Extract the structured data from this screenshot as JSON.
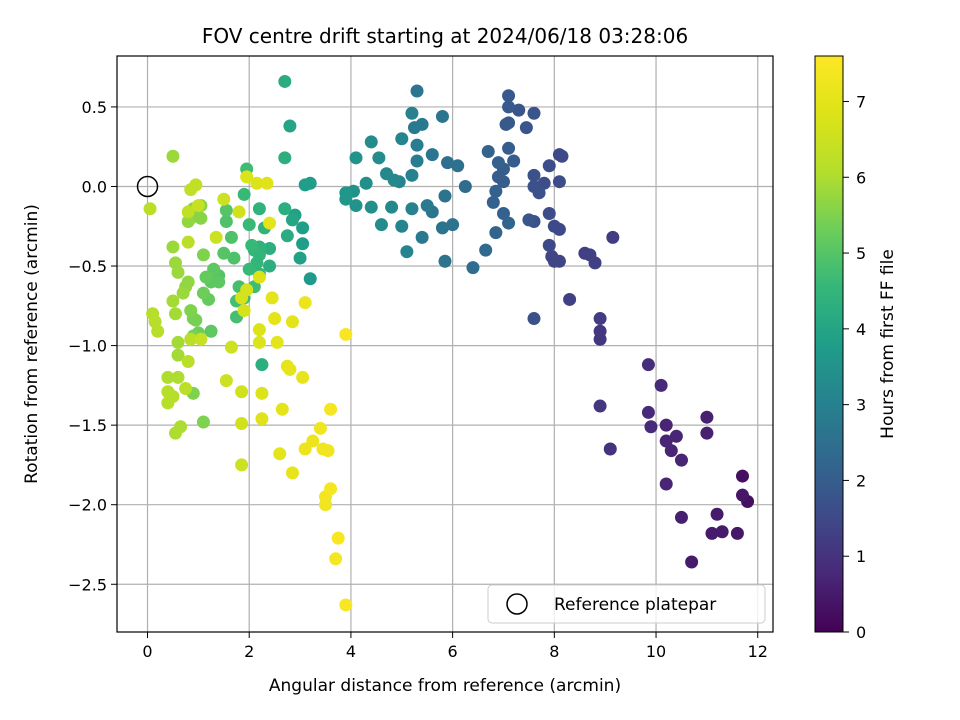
{
  "chart_data": {
    "type": "scatter",
    "title": "FOV centre drift starting at 2024/06/18 03:28:06",
    "xlabel": "Angular distance from reference (arcmin)",
    "ylabel": "Rotation from reference (arcmin)",
    "xlim": [
      -0.6,
      12.3
    ],
    "ylim": [
      -2.8,
      0.82
    ],
    "xticks": [
      0,
      2,
      4,
      6,
      8,
      10,
      12
    ],
    "yticks": [
      0.5,
      0.0,
      -0.5,
      -1.0,
      -1.5,
      -2.0,
      -2.5
    ],
    "xtick_labels": [
      "0",
      "2",
      "4",
      "6",
      "8",
      "10",
      "12"
    ],
    "ytick_labels": [
      "0.5",
      "0.0",
      "−0.5",
      "−1.0",
      "−1.5",
      "−2.0",
      "−2.5"
    ],
    "grid": true,
    "colormap": "viridis",
    "colorbar": {
      "label": "Hours from first FF file",
      "range": [
        0,
        7.6
      ],
      "ticks": [
        0,
        1,
        2,
        3,
        4,
        5,
        6,
        7
      ],
      "tick_labels": [
        "0",
        "1",
        "2",
        "3",
        "4",
        "5",
        "6",
        "7"
      ]
    },
    "reference": {
      "x": 0,
      "y": 0,
      "label": "Reference platepar"
    },
    "legend_position": "lower-right",
    "points": [
      [
        11.7,
        -1.82,
        0.3
      ],
      [
        11.8,
        -1.98,
        0.3
      ],
      [
        11.7,
        -1.94,
        0.4
      ],
      [
        11.6,
        -2.18,
        0.4
      ],
      [
        11.3,
        -2.17,
        0.5
      ],
      [
        11.2,
        -2.06,
        0.5
      ],
      [
        11.1,
        -2.18,
        0.5
      ],
      [
        11.0,
        -1.45,
        0.6
      ],
      [
        11.0,
        -1.55,
        0.6
      ],
      [
        10.7,
        -2.36,
        0.5
      ],
      [
        10.5,
        -2.08,
        0.6
      ],
      [
        10.5,
        -1.72,
        0.7
      ],
      [
        10.4,
        -1.57,
        0.7
      ],
      [
        10.3,
        -1.66,
        0.7
      ],
      [
        10.2,
        -1.6,
        0.7
      ],
      [
        10.2,
        -1.5,
        0.7
      ],
      [
        10.2,
        -1.87,
        0.7
      ],
      [
        10.1,
        -1.25,
        0.8
      ],
      [
        9.9,
        -1.51,
        0.8
      ],
      [
        9.85,
        -1.42,
        0.8
      ],
      [
        9.85,
        -1.12,
        0.9
      ],
      [
        9.1,
        -1.65,
        1.0
      ],
      [
        8.9,
        -1.38,
        1.1
      ],
      [
        8.9,
        -0.96,
        1.1
      ],
      [
        8.9,
        -0.91,
        1.1
      ],
      [
        8.9,
        -0.83,
        1.2
      ],
      [
        9.15,
        -0.32,
        1.2
      ],
      [
        8.8,
        -0.48,
        1.3
      ],
      [
        8.7,
        -0.43,
        1.3
      ],
      [
        8.6,
        -0.42,
        1.3
      ],
      [
        8.3,
        -0.71,
        1.3
      ],
      [
        8.1,
        -0.47,
        1.4
      ],
      [
        8.0,
        -0.47,
        1.4
      ],
      [
        7.95,
        -0.44,
        1.4
      ],
      [
        7.9,
        -0.37,
        1.5
      ],
      [
        8.1,
        -0.27,
        1.5
      ],
      [
        8.0,
        -0.25,
        1.5
      ],
      [
        7.9,
        -0.17,
        1.6
      ],
      [
        7.6,
        -0.83,
        1.7
      ],
      [
        8.1,
        0.03,
        1.6
      ],
      [
        8.15,
        0.19,
        1.5
      ],
      [
        8.1,
        0.2,
        1.5
      ],
      [
        7.9,
        0.13,
        1.6
      ],
      [
        7.8,
        0.02,
        1.6
      ],
      [
        7.7,
        -0.04,
        1.7
      ],
      [
        7.6,
        0.0,
        1.7
      ],
      [
        7.6,
        -0.22,
        1.7
      ],
      [
        7.5,
        -0.21,
        1.8
      ],
      [
        7.6,
        0.07,
        1.7
      ],
      [
        7.6,
        0.46,
        1.8
      ],
      [
        7.45,
        0.37,
        1.8
      ],
      [
        7.3,
        0.48,
        1.8
      ],
      [
        7.1,
        0.57,
        1.9
      ],
      [
        7.1,
        0.5,
        1.9
      ],
      [
        7.1,
        0.4,
        1.9
      ],
      [
        7.05,
        0.39,
        1.9
      ],
      [
        7.2,
        0.16,
        2.0
      ],
      [
        7.1,
        0.24,
        2.0
      ],
      [
        7.0,
        0.11,
        2.0
      ],
      [
        7.0,
        0.03,
        2.0
      ],
      [
        6.9,
        0.06,
        2.0
      ],
      [
        6.85,
        -0.03,
        2.1
      ],
      [
        6.8,
        -0.1,
        2.1
      ],
      [
        6.9,
        0.15,
        2.1
      ],
      [
        7.0,
        -0.17,
        2.1
      ],
      [
        7.1,
        -0.23,
        2.2
      ],
      [
        6.85,
        -0.29,
        2.2
      ],
      [
        6.7,
        0.22,
        2.2
      ],
      [
        6.65,
        -0.4,
        2.3
      ],
      [
        6.4,
        -0.51,
        2.4
      ],
      [
        6.25,
        0.0,
        2.4
      ],
      [
        6.1,
        0.13,
        2.5
      ],
      [
        5.9,
        0.15,
        2.5
      ],
      [
        6.0,
        -0.24,
        2.6
      ],
      [
        5.8,
        -0.26,
        2.6
      ],
      [
        5.85,
        -0.06,
        2.6
      ],
      [
        5.85,
        -0.47,
        2.6
      ],
      [
        5.8,
        0.44,
        2.7
      ],
      [
        5.6,
        -0.16,
        2.7
      ],
      [
        5.6,
        0.2,
        2.7
      ],
      [
        5.5,
        -0.12,
        2.8
      ],
      [
        5.4,
        -0.32,
        2.8
      ],
      [
        5.4,
        0.39,
        2.8
      ],
      [
        5.3,
        0.6,
        2.7
      ],
      [
        5.25,
        0.37,
        2.8
      ],
      [
        5.3,
        0.26,
        2.9
      ],
      [
        5.3,
        0.16,
        2.9
      ],
      [
        5.2,
        0.46,
        3.0
      ],
      [
        5.2,
        0.07,
        3.0
      ],
      [
        5.2,
        -0.14,
        3.0
      ],
      [
        5.1,
        -0.41,
        3.1
      ],
      [
        5.0,
        -0.25,
        3.1
      ],
      [
        5.0,
        0.3,
        3.1
      ],
      [
        4.95,
        0.03,
        3.1
      ],
      [
        4.85,
        0.04,
        3.2
      ],
      [
        4.8,
        -0.13,
        3.2
      ],
      [
        4.7,
        0.08,
        3.2
      ],
      [
        4.6,
        -0.24,
        3.3
      ],
      [
        4.55,
        0.18,
        3.3
      ],
      [
        4.4,
        0.28,
        3.3
      ],
      [
        4.4,
        -0.13,
        3.4
      ],
      [
        4.3,
        0.02,
        3.4
      ],
      [
        4.1,
        0.18,
        3.5
      ],
      [
        4.05,
        -0.03,
        3.5
      ],
      [
        4.1,
        -0.12,
        3.5
      ],
      [
        3.9,
        -0.04,
        3.6
      ],
      [
        3.9,
        -0.08,
        3.6
      ],
      [
        3.2,
        0.02,
        3.8
      ],
      [
        3.2,
        -0.58,
        3.7
      ],
      [
        3.1,
        0.01,
        3.8
      ],
      [
        3.05,
        -0.26,
        3.8
      ],
      [
        3.05,
        -0.36,
        3.8
      ],
      [
        3.0,
        -0.45,
        3.9
      ],
      [
        2.9,
        -0.18,
        3.9
      ],
      [
        2.85,
        -0.21,
        4.0
      ],
      [
        2.8,
        0.38,
        4.0
      ],
      [
        2.7,
        0.66,
        4.2
      ],
      [
        2.7,
        0.18,
        4.3
      ],
      [
        2.75,
        -0.31,
        4.2
      ],
      [
        2.7,
        -0.14,
        4.3
      ],
      [
        2.4,
        -0.39,
        4.3
      ],
      [
        2.4,
        -0.5,
        4.3
      ],
      [
        2.2,
        -0.14,
        4.4
      ],
      [
        2.3,
        -0.26,
        4.4
      ],
      [
        2.2,
        -0.38,
        4.4
      ],
      [
        2.2,
        -0.43,
        4.5
      ],
      [
        2.2,
        -0.55,
        4.5
      ],
      [
        2.15,
        -0.48,
        4.5
      ],
      [
        2.1,
        -0.4,
        4.5
      ],
      [
        2.05,
        -0.37,
        4.6
      ],
      [
        2.0,
        -0.24,
        4.6
      ],
      [
        2.0,
        -0.52,
        4.6
      ],
      [
        1.9,
        -0.05,
        4.6
      ],
      [
        1.95,
        0.11,
        4.7
      ],
      [
        2.25,
        -1.12,
        4.3
      ],
      [
        2.1,
        -0.63,
        4.7
      ],
      [
        1.9,
        -0.7,
        4.7
      ],
      [
        1.8,
        -0.63,
        4.8
      ],
      [
        1.75,
        -0.72,
        4.8
      ],
      [
        1.75,
        -0.82,
        4.8
      ],
      [
        1.7,
        -0.45,
        4.9
      ],
      [
        1.65,
        -0.32,
        4.9
      ],
      [
        1.55,
        -0.22,
        4.9
      ],
      [
        1.55,
        -0.15,
        5.0
      ],
      [
        1.5,
        -0.42,
        5.0
      ],
      [
        1.4,
        -0.56,
        5.0
      ],
      [
        1.4,
        -0.6,
        5.1
      ],
      [
        1.3,
        -0.52,
        5.1
      ],
      [
        1.25,
        -0.6,
        5.1
      ],
      [
        1.25,
        -0.91,
        5.1
      ],
      [
        1.2,
        -0.71,
        5.2
      ],
      [
        1.15,
        -0.57,
        5.2
      ],
      [
        1.1,
        -0.67,
        5.3
      ],
      [
        1.0,
        -0.92,
        5.3
      ],
      [
        0.95,
        -0.84,
        5.4
      ],
      [
        0.9,
        -0.83,
        5.4
      ],
      [
        0.9,
        -0.94,
        5.4
      ],
      [
        0.85,
        -0.78,
        5.5
      ],
      [
        0.9,
        -1.3,
        5.5
      ],
      [
        1.1,
        -1.48,
        5.5
      ],
      [
        1.1,
        -0.43,
        5.5
      ],
      [
        1.05,
        -0.2,
        5.6
      ],
      [
        1.05,
        -0.12,
        5.6
      ],
      [
        0.9,
        -0.14,
        5.6
      ],
      [
        0.85,
        -0.2,
        5.6
      ],
      [
        0.8,
        -0.22,
        5.7
      ],
      [
        0.8,
        -0.6,
        5.7
      ],
      [
        0.75,
        -0.63,
        5.7
      ],
      [
        0.7,
        -0.67,
        5.8
      ],
      [
        0.6,
        -0.54,
        5.8
      ],
      [
        0.55,
        -0.48,
        5.8
      ],
      [
        0.5,
        -0.38,
        5.8
      ],
      [
        0.5,
        0.19,
        5.8
      ],
      [
        0.5,
        -0.72,
        5.9
      ],
      [
        0.55,
        -0.8,
        5.9
      ],
      [
        0.6,
        -0.98,
        5.9
      ],
      [
        0.6,
        -1.06,
        5.9
      ],
      [
        0.55,
        -1.55,
        6.0
      ],
      [
        0.65,
        -1.51,
        6.0
      ],
      [
        0.6,
        -1.2,
        6.0
      ],
      [
        0.4,
        -1.2,
        6.0
      ],
      [
        0.4,
        -1.36,
        6.1
      ],
      [
        0.5,
        -1.32,
        6.1
      ],
      [
        0.4,
        -1.29,
        6.1
      ],
      [
        0.2,
        -0.91,
        6.1
      ],
      [
        0.15,
        -0.85,
        6.1
      ],
      [
        0.1,
        -0.8,
        6.1
      ],
      [
        0.05,
        -0.14,
        6.2
      ],
      [
        0.75,
        -1.27,
        6.2
      ],
      [
        0.8,
        -1.1,
        6.2
      ],
      [
        0.85,
        -0.96,
        6.2
      ],
      [
        0.8,
        -0.35,
        6.2
      ],
      [
        0.8,
        -0.16,
        6.3
      ],
      [
        0.85,
        -0.02,
        6.3
      ],
      [
        0.95,
        0.01,
        6.3
      ],
      [
        1.0,
        -0.12,
        6.4
      ],
      [
        1.05,
        -0.96,
        6.4
      ],
      [
        1.35,
        -0.32,
        6.5
      ],
      [
        1.5,
        -0.08,
        6.5
      ],
      [
        1.55,
        -1.22,
        6.5
      ],
      [
        1.65,
        -1.01,
        6.5
      ],
      [
        1.85,
        -1.75,
        6.5
      ],
      [
        1.85,
        -1.49,
        6.6
      ],
      [
        1.85,
        -1.29,
        6.6
      ],
      [
        1.8,
        -0.16,
        6.6
      ],
      [
        1.85,
        -0.7,
        6.7
      ],
      [
        1.9,
        -0.78,
        6.7
      ],
      [
        1.95,
        -0.65,
        6.7
      ],
      [
        1.95,
        0.06,
        6.8
      ],
      [
        2.15,
        0.02,
        6.8
      ],
      [
        2.2,
        -0.57,
        6.8
      ],
      [
        2.2,
        -0.9,
        6.8
      ],
      [
        2.2,
        -0.98,
        6.8
      ],
      [
        2.25,
        -1.3,
        6.8
      ],
      [
        2.25,
        -1.46,
        6.9
      ],
      [
        2.35,
        0.02,
        6.9
      ],
      [
        2.4,
        -0.23,
        7.0
      ],
      [
        2.45,
        -0.7,
        7.0
      ],
      [
        2.5,
        -0.83,
        7.0
      ],
      [
        2.55,
        -0.98,
        7.0
      ],
      [
        2.6,
        -1.68,
        7.0
      ],
      [
        2.65,
        -1.4,
        7.0
      ],
      [
        2.75,
        -1.13,
        7.0
      ],
      [
        2.85,
        -0.85,
        7.0
      ],
      [
        2.85,
        -1.8,
        7.1
      ],
      [
        2.8,
        -1.15,
        7.1
      ],
      [
        3.05,
        -1.2,
        7.1
      ],
      [
        3.1,
        -0.73,
        7.2
      ],
      [
        3.1,
        -1.65,
        7.2
      ],
      [
        3.25,
        -1.6,
        7.2
      ],
      [
        3.4,
        -1.52,
        7.3
      ],
      [
        3.45,
        -1.65,
        7.3
      ],
      [
        3.5,
        -2.0,
        7.3
      ],
      [
        3.5,
        -1.95,
        7.3
      ],
      [
        3.55,
        -1.66,
        7.3
      ],
      [
        3.6,
        -1.9,
        7.4
      ],
      [
        3.6,
        -1.4,
        7.4
      ],
      [
        3.7,
        -2.34,
        7.4
      ],
      [
        3.75,
        -2.21,
        7.5
      ],
      [
        3.9,
        -2.63,
        7.5
      ],
      [
        3.9,
        -0.93,
        7.5
      ]
    ]
  }
}
